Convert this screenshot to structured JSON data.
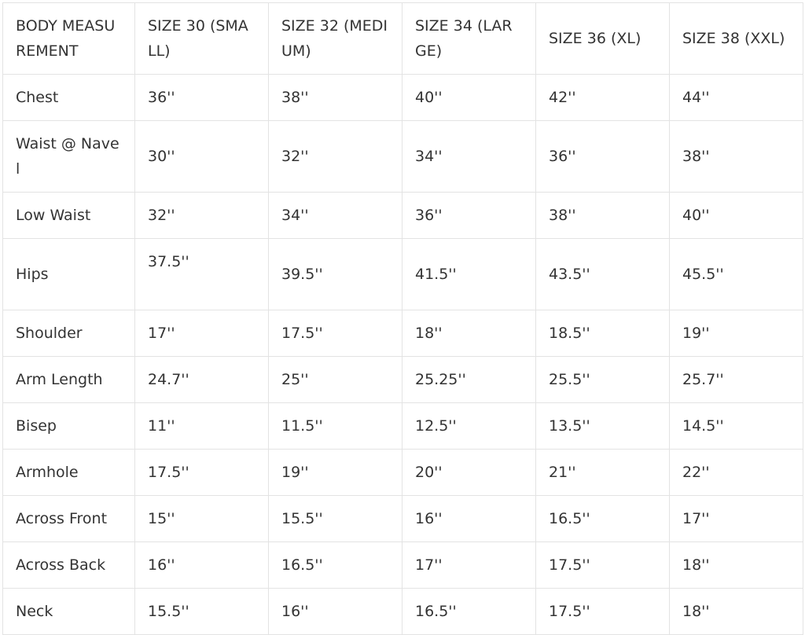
{
  "headers": [
    "BODY MEASUREMENT",
    "SIZE 30 (SMALL)",
    "SIZE 32 (MEDIUM)",
    "SIZE 34 (LARGE)",
    "SIZE 36 (XL)",
    "SIZE 38 (XXL)"
  ],
  "rows": [
    {
      "label": "Chest",
      "values": [
        "36''",
        "38''",
        "40''",
        "42''",
        "44''"
      ]
    },
    {
      "label": "Waist @ Navel",
      "values": [
        "30''",
        "32''",
        "34''",
        "36''",
        "38''"
      ]
    },
    {
      "label": "Low Waist",
      "values": [
        "32''",
        "34''",
        "36''",
        "38''",
        "40''"
      ]
    },
    {
      "label": "Hips",
      "values": [
        "37.5''",
        "39.5''",
        "41.5''",
        "43.5''",
        "45.5''"
      ]
    },
    {
      "label": "Shoulder",
      "values": [
        "17''",
        "17.5''",
        "18''",
        "18.5''",
        "19''"
      ]
    },
    {
      "label": "Arm Length",
      "values": [
        "24.7''",
        "25''",
        "25.25''",
        "25.5''",
        "25.7''"
      ]
    },
    {
      "label": "Bisep",
      "values": [
        "11''",
        "11.5''",
        "12.5''",
        "13.5''",
        "14.5''"
      ]
    },
    {
      "label": "Armhole",
      "values": [
        "17.5''",
        "19''",
        "20''",
        "21''",
        "22''"
      ]
    },
    {
      "label": "Across Front",
      "values": [
        "15''",
        "15.5''",
        "16''",
        "16.5''",
        "17''"
      ]
    },
    {
      "label": "Across Back",
      "values": [
        "16''",
        "16.5''",
        "17''",
        "17.5''",
        "18''"
      ]
    },
    {
      "label": "Neck",
      "values": [
        "15.5''",
        "16''",
        "16.5''",
        "17.5''",
        "18''"
      ]
    }
  ]
}
